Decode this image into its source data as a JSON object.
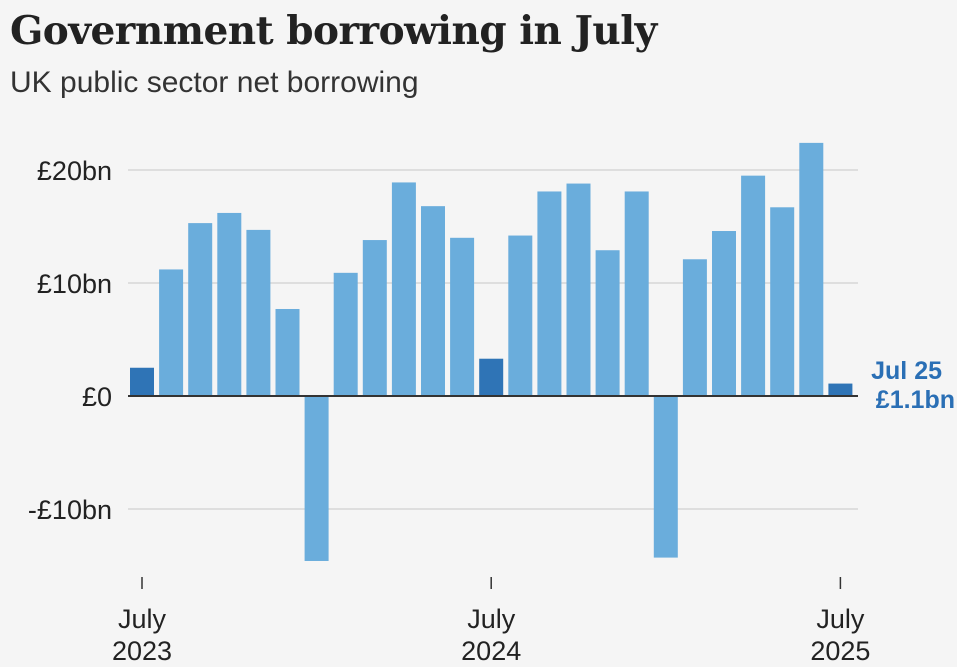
{
  "header": {
    "title": "Government borrowing in July",
    "subtitle": "UK public sector net borrowing"
  },
  "colors": {
    "bar": "#6aaddc",
    "highlight": "#2f74b6",
    "grid": "#d6d6d6",
    "zero_line": "#333333",
    "annotation": "#2a6fb5"
  },
  "chart_data": {
    "type": "bar",
    "title": "Government borrowing in July",
    "subtitle": "UK public sector net borrowing",
    "unit": "£bn",
    "ylim": [
      -15,
      22.5
    ],
    "yticks": [
      {
        "value": 20,
        "label": "£20bn"
      },
      {
        "value": 10,
        "label": "£10bn"
      },
      {
        "value": 0,
        "label": "£0"
      },
      {
        "value": -10,
        "label": "-£10bn"
      }
    ],
    "categories": [
      "Jul 2023",
      "Aug 2023",
      "Sep 2023",
      "Oct 2023",
      "Nov 2023",
      "Dec 2023",
      "Jan 2024",
      "Feb 2024",
      "Mar 2024",
      "Apr 2024",
      "May 2024",
      "Jun 2024",
      "Jul 2024",
      "Aug 2024",
      "Sep 2024",
      "Oct 2024",
      "Nov 2024",
      "Dec 2024",
      "Jan 2025",
      "Feb 2025",
      "Mar 2025",
      "Apr 2025",
      "May 2025",
      "Jun 2025",
      "Jul 2025"
    ],
    "values": [
      2.5,
      11.2,
      15.3,
      16.2,
      14.7,
      7.7,
      -14.6,
      10.9,
      13.8,
      18.9,
      16.8,
      14.0,
      3.3,
      14.2,
      18.1,
      18.8,
      12.9,
      18.1,
      -14.3,
      12.1,
      14.6,
      19.5,
      16.7,
      22.4,
      1.1
    ],
    "highlight_indices": [
      0,
      12,
      24
    ],
    "xticks": [
      {
        "index": 0,
        "label1": "July",
        "label2": "2023"
      },
      {
        "index": 12,
        "label1": "July",
        "label2": "2024"
      },
      {
        "index": 24,
        "label1": "July",
        "label2": "2025"
      }
    ],
    "annotation": {
      "index": 24,
      "line1": "Jul 25",
      "line2": "£1.1bn"
    }
  }
}
